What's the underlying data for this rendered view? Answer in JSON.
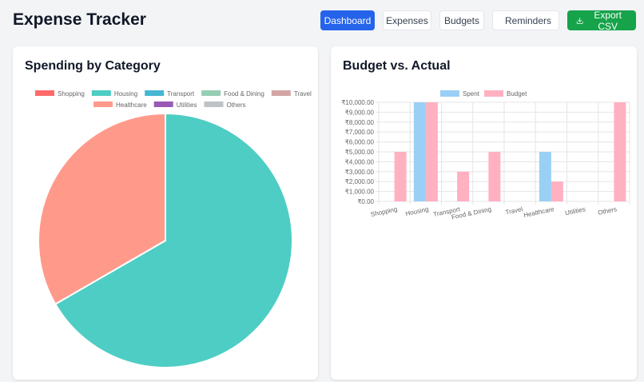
{
  "app": {
    "title": "Expense Tracker"
  },
  "nav": {
    "dashboard": "Dashboard",
    "expenses": "Expenses",
    "budgets": "Budgets",
    "reminders": "Reminders",
    "export": "Export CSV"
  },
  "pie_card": {
    "title": "Spending by Category"
  },
  "bar_card": {
    "title": "Budget vs. Actual"
  },
  "chart_data": [
    {
      "type": "pie",
      "title": "",
      "labels": [
        "Shopping",
        "Housing",
        "Transport",
        "Food & Dining",
        "Travel",
        "Healthcare",
        "Utilities",
        "Others"
      ],
      "values": [
        0,
        10000,
        0,
        0,
        0,
        5000,
        0,
        0
      ],
      "colors": [
        "#ff6b6b",
        "#4ecdc4",
        "#45b7d1",
        "#96ceb4",
        "#d4a5a5",
        "#ff9a8b",
        "#9b59b6",
        "#bdc3c7"
      ],
      "legend": "top"
    },
    {
      "type": "bar",
      "title": "",
      "categories": [
        "Shopping",
        "Housing",
        "Transport",
        "Food & Dining",
        "Travel",
        "Healthcare",
        "Utilities",
        "Others"
      ],
      "series": [
        {
          "name": "Spent",
          "values": [
            0,
            10000,
            0,
            0,
            0,
            5000,
            0,
            0
          ],
          "color": "#9ad0f5"
        },
        {
          "name": "Budget",
          "values": [
            5000,
            10000,
            3000,
            5000,
            0,
            2000,
            0,
            10000
          ],
          "color": "#ffb1c1"
        }
      ],
      "ylim": [
        0,
        10000
      ],
      "yticks": [
        "₹0.00",
        "₹1,000.00",
        "₹2,000.00",
        "₹3,000.00",
        "₹4,000.00",
        "₹5,000.00",
        "₹6,000.00",
        "₹7,000.00",
        "₹8,000.00",
        "₹9,000.00",
        "₹10,000.00"
      ],
      "grid": true,
      "legend": "top"
    }
  ]
}
